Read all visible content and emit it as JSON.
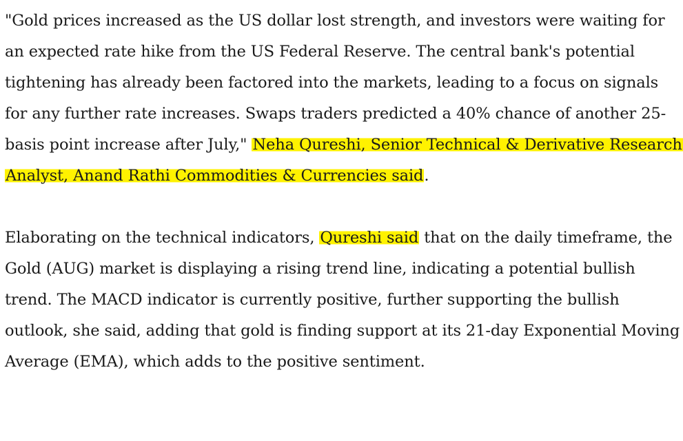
{
  "paragraph1": {
    "text_before": "\"Gold prices increased as the US dollar lost strength, and investors were waiting for an expected rate hike from the US Federal Reserve. The central bank's potential tightening has already been factored into the markets, leading to a focus on signals for any further rate increases. Swaps traders predicted a 40% chance of another 25-basis point increase after July,\" ",
    "highlight": "Neha Qureshi, Senior Technical & Derivative Research Analyst, Anand Rathi Commodities & Currencies said",
    "text_after": "."
  },
  "paragraph2": {
    "text_before": "Elaborating on the technical indicators, ",
    "highlight": "Qureshi said",
    "text_after": " that on the daily timeframe, the Gold (AUG) market is displaying a rising trend line, indicating a potential bullish trend. The MACD indicator is currently positive, further supporting the bullish outlook, she said, adding that gold is finding support at its 21-day Exponential Moving Average (EMA), which adds to the positive sentiment."
  },
  "colors": {
    "highlight": "#fff200",
    "text": "#1a1a1a",
    "background": "#ffffff"
  }
}
